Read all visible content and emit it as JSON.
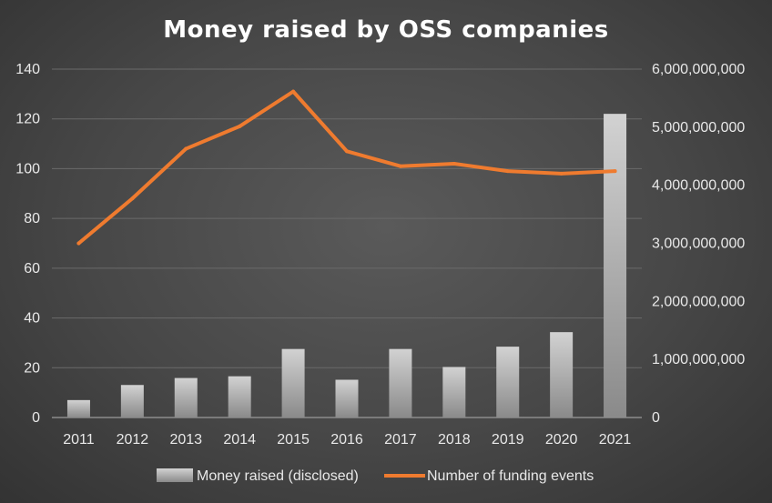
{
  "colors": {
    "bar_top": "#d2d2d2",
    "bar_bottom": "#8a8a8a",
    "line": "#ef7b2f",
    "grid": "#6a6a6a",
    "text": "#e8e8e8"
  },
  "chart_data": {
    "type": "bar",
    "title": "Money raised by OSS companies",
    "categories": [
      "2011",
      "2012",
      "2013",
      "2014",
      "2015",
      "2016",
      "2017",
      "2018",
      "2019",
      "2020",
      "2021"
    ],
    "series": [
      {
        "name": "Money raised (disclosed)",
        "type": "bar",
        "axis": "right",
        "values": [
          300000000,
          560000000,
          680000000,
          710000000,
          1180000000,
          650000000,
          1180000000,
          870000000,
          1220000000,
          1470000000,
          5230000000
        ]
      },
      {
        "name": "Number of funding events",
        "type": "line",
        "axis": "left",
        "values": [
          70,
          88,
          108,
          117,
          131,
          107,
          101,
          102,
          99,
          98,
          99
        ]
      }
    ],
    "y_left": {
      "min": 0,
      "max": 140,
      "ticks": [
        0,
        20,
        40,
        60,
        80,
        100,
        120,
        140
      ],
      "tick_labels": [
        "0",
        "20",
        "40",
        "60",
        "80",
        "100",
        "120",
        "140"
      ]
    },
    "y_right": {
      "min": 0,
      "max": 6000000000,
      "ticks": [
        0,
        1000000000,
        2000000000,
        3000000000,
        4000000000,
        5000000000,
        6000000000
      ],
      "tick_labels": [
        "0",
        "1,000,000,000",
        "2,000,000,000",
        "3,000,000,000",
        "4,000,000,000",
        "5,000,000,000",
        "6,000,000,000"
      ]
    },
    "grid": true,
    "legend_position": "bottom"
  }
}
